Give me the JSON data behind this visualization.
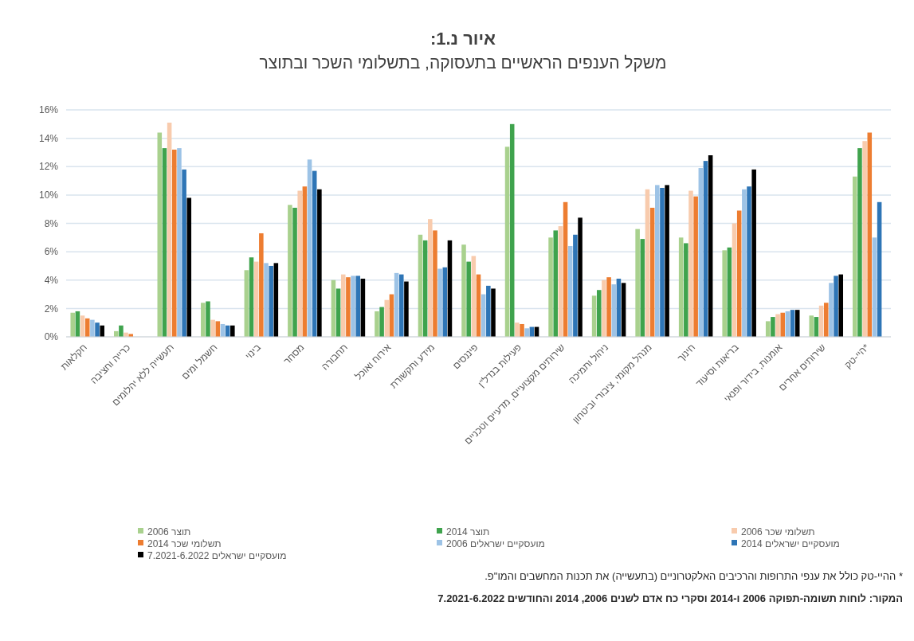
{
  "chart_data": {
    "type": "bar",
    "title": "איור נ.1:",
    "subtitle": "משקל הענפים הראשיים בתעסוקה, בתשלומי השכר ובתוצר",
    "categories": [
      "חקלאות",
      "כרייה וחציבה",
      "תעשייה ללא יהלומים",
      "חשמל ומים",
      "בינוי",
      "מסחר",
      "תחבורה",
      "אירוח ואוכל",
      "מידע ותקשורת",
      "פיננסים",
      "פעילות בנדל\"ן",
      "שירותים מקצועיים, מדעיים וטכניים",
      "ניהול ותמיכה",
      "מנהל מקומי, ציבורי וביטחון",
      "חינוך",
      "בריאות וסיעוד",
      "אומנות, בידור ופנאי",
      "שירותים אחרים",
      "היי-טק*"
    ],
    "series": [
      {
        "name": "תוצר 2006",
        "color": "#a9d18e",
        "values": [
          1.7,
          0.4,
          14.4,
          2.4,
          4.7,
          9.3,
          4.0,
          1.8,
          7.2,
          6.5,
          13.4,
          7.0,
          2.9,
          7.6,
          7.0,
          6.1,
          1.1,
          1.5,
          11.3
        ]
      },
      {
        "name": "תוצר 2014",
        "color": "#3fa34d",
        "values": [
          1.8,
          0.8,
          13.3,
          2.5,
          5.6,
          9.1,
          3.4,
          2.1,
          6.8,
          5.3,
          15.0,
          7.5,
          3.3,
          6.9,
          6.6,
          6.3,
          1.4,
          1.4,
          13.3
        ]
      },
      {
        "name": "תשלומי שכר 2006",
        "color": "#f8cbad",
        "values": [
          1.5,
          0.3,
          15.1,
          1.2,
          5.3,
          10.3,
          4.4,
          2.6,
          8.3,
          5.7,
          1.0,
          7.8,
          4.0,
          10.4,
          10.3,
          8.0,
          1.6,
          2.2,
          13.8
        ]
      },
      {
        "name": "תשלומי שכר 2014",
        "color": "#ed7d31",
        "values": [
          1.3,
          0.2,
          13.2,
          1.1,
          7.3,
          10.6,
          4.2,
          3.0,
          7.5,
          4.4,
          0.9,
          9.5,
          4.2,
          9.1,
          9.9,
          8.9,
          1.7,
          2.4,
          14.4
        ]
      },
      {
        "name": "מועסקיים ישראלים 2006",
        "color": "#9dc3e6",
        "values": [
          1.2,
          0,
          13.3,
          0.9,
          5.2,
          12.5,
          4.3,
          4.5,
          4.8,
          3.0,
          0.6,
          6.4,
          3.7,
          10.7,
          11.9,
          10.4,
          1.8,
          3.8,
          7.0
        ]
      },
      {
        "name": "מועסקיים ישראלים 2014",
        "color": "#2e75b6",
        "values": [
          1.0,
          0,
          11.8,
          0.8,
          5.0,
          11.7,
          4.3,
          4.4,
          4.9,
          3.6,
          0.7,
          7.2,
          4.1,
          10.5,
          12.4,
          10.6,
          1.9,
          4.3,
          9.5
        ]
      },
      {
        "name": "מועסקיים ישראלים 7.2021-6.2022",
        "color": "#000000",
        "values": [
          0.8,
          0,
          9.8,
          0.8,
          5.2,
          10.4,
          4.1,
          3.9,
          6.8,
          3.4,
          0.7,
          8.4,
          3.8,
          10.7,
          12.8,
          11.8,
          1.9,
          4.4,
          null
        ]
      }
    ],
    "ylim": [
      0,
      16
    ],
    "yticks": [
      {
        "value": 0,
        "label": "0%"
      },
      {
        "value": 2,
        "label": "2%"
      },
      {
        "value": 4,
        "label": "4%"
      },
      {
        "value": 6,
        "label": "6%"
      },
      {
        "value": 8,
        "label": "8%"
      },
      {
        "value": 10,
        "label": "10%"
      },
      {
        "value": 12,
        "label": "12%"
      },
      {
        "value": 14,
        "label": "14%"
      },
      {
        "value": 16,
        "label": "16%"
      }
    ],
    "grid": "y",
    "legend": "bottom",
    "annotations": [
      "* ההיי-טק כולל את ענפי התרופות והרכיבים האלקטרוניים (בתעשייה) את תכנות המחשבים והמו\"פ.",
      "המקור: לוחות תשומה-תפוקה 2006 ו-2014 וסקרי כח אדם לשנים 2006, 2014 והחודשים 7.2021-6.2022"
    ]
  }
}
